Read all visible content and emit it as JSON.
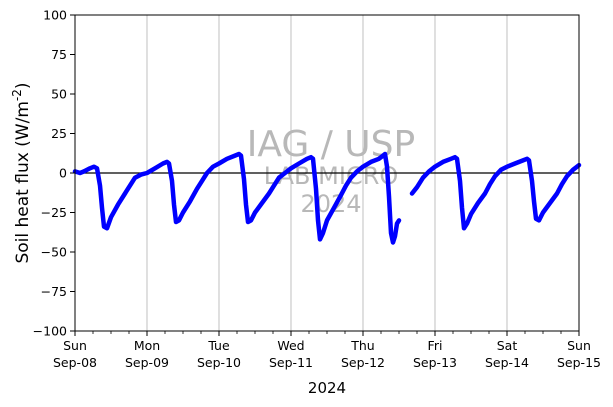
{
  "chart_data": {
    "type": "line",
    "xlabel": "2024",
    "ylabel": "Soil heat flux (W/m^-2)",
    "ylim": [
      -100,
      100
    ],
    "yticks": [
      100,
      75,
      50,
      25,
      0,
      -25,
      -50,
      -75,
      -100
    ],
    "ytick_labels": [
      "100",
      "75",
      "50",
      "25",
      "0",
      "−25",
      "−50",
      "−75",
      "−100"
    ],
    "xlim": [
      "2024-09-08T00:00",
      "2024-09-15T00:00"
    ],
    "xticks": [
      {
        "date": "2024-09-08",
        "day": "Sun",
        "label": "Sep-08"
      },
      {
        "date": "2024-09-09",
        "day": "Mon",
        "label": "Sep-09"
      },
      {
        "date": "2024-09-10",
        "day": "Tue",
        "label": "Sep-10"
      },
      {
        "date": "2024-09-11",
        "day": "Wed",
        "label": "Sep-11"
      },
      {
        "date": "2024-09-12",
        "day": "Thu",
        "label": "Sep-12"
      },
      {
        "date": "2024-09-13",
        "day": "Fri",
        "label": "Sep-13"
      },
      {
        "date": "2024-09-14",
        "day": "Sat",
        "label": "Sep-14"
      },
      {
        "date": "2024-09-15",
        "day": "Sun",
        "label": "Sep-15"
      }
    ],
    "grid": "vertical",
    "zero_line": true,
    "watermark": [
      "IAG / USP",
      "LAB MICRO",
      "2024"
    ],
    "series": [
      {
        "color": "#0000ff",
        "segments": [
          [
            [
              "2024-09-08T00:00",
              1
            ],
            [
              "2024-09-08T01:40",
              0
            ],
            [
              "2024-09-08T03:00",
              1
            ],
            [
              "2024-09-08T05:00",
              3
            ],
            [
              "2024-09-08T06:20",
              4
            ],
            [
              "2024-09-08T07:20",
              3
            ],
            [
              "2024-09-08T08:20",
              -8
            ],
            [
              "2024-09-08T09:00",
              -22
            ],
            [
              "2024-09-08T09:40",
              -34
            ],
            [
              "2024-09-08T10:40",
              -35
            ],
            [
              "2024-09-08T12:00",
              -28
            ],
            [
              "2024-09-08T14:20",
              -20
            ],
            [
              "2024-09-08T16:40",
              -13
            ],
            [
              "2024-09-08T18:20",
              -8
            ],
            [
              "2024-09-08T20:00",
              -3
            ],
            [
              "2024-09-08T22:00",
              -1
            ],
            [
              "2024-09-09T00:00",
              0
            ],
            [
              "2024-09-09T02:40",
              3
            ],
            [
              "2024-09-09T05:20",
              6
            ],
            [
              "2024-09-09T06:40",
              7
            ],
            [
              "2024-09-09T07:20",
              6
            ],
            [
              "2024-09-09T08:20",
              -5
            ],
            [
              "2024-09-09T09:00",
              -20
            ],
            [
              "2024-09-09T09:40",
              -31
            ],
            [
              "2024-09-09T10:40",
              -30
            ],
            [
              "2024-09-09T12:00",
              -25
            ],
            [
              "2024-09-09T14:20",
              -18
            ],
            [
              "2024-09-09T16:40",
              -10
            ],
            [
              "2024-09-09T18:20",
              -5
            ],
            [
              "2024-09-09T20:00",
              0
            ],
            [
              "2024-09-09T22:00",
              4
            ],
            [
              "2024-09-10T00:00",
              6
            ],
            [
              "2024-09-10T02:40",
              9
            ],
            [
              "2024-09-10T05:20",
              11
            ],
            [
              "2024-09-10T06:40",
              12
            ],
            [
              "2024-09-10T07:20",
              11
            ],
            [
              "2024-09-10T08:20",
              -4
            ],
            [
              "2024-09-10T09:00",
              -20
            ],
            [
              "2024-09-10T09:40",
              -31
            ],
            [
              "2024-09-10T10:40",
              -30
            ],
            [
              "2024-09-10T12:00",
              -25
            ],
            [
              "2024-09-10T14:20",
              -19
            ],
            [
              "2024-09-10T16:40",
              -13
            ],
            [
              "2024-09-10T18:20",
              -8
            ],
            [
              "2024-09-10T20:00",
              -3
            ],
            [
              "2024-09-10T22:00",
              0
            ],
            [
              "2024-09-11T00:00",
              3
            ],
            [
              "2024-09-11T02:40",
              6
            ],
            [
              "2024-09-11T05:20",
              9
            ],
            [
              "2024-09-11T06:40",
              10
            ],
            [
              "2024-09-11T07:20",
              9
            ],
            [
              "2024-09-11T08:20",
              -10
            ],
            [
              "2024-09-11T09:00",
              -30
            ],
            [
              "2024-09-11T09:40",
              -42
            ],
            [
              "2024-09-11T10:40",
              -38
            ],
            [
              "2024-09-11T12:00",
              -30
            ],
            [
              "2024-09-11T14:20",
              -22
            ],
            [
              "2024-09-11T16:40",
              -14
            ],
            [
              "2024-09-11T18:20",
              -8
            ],
            [
              "2024-09-11T20:00",
              -3
            ],
            [
              "2024-09-11T22:00",
              1
            ],
            [
              "2024-09-12T00:00",
              4
            ],
            [
              "2024-09-12T02:40",
              7
            ],
            [
              "2024-09-12T05:20",
              9
            ],
            [
              "2024-09-12T06:40",
              11
            ],
            [
              "2024-09-12T07:20",
              12
            ],
            [
              "2024-09-12T08:00",
              4
            ],
            [
              "2024-09-12T08:40",
              -15
            ],
            [
              "2024-09-12T09:20",
              -38
            ],
            [
              "2024-09-12T10:00",
              -44
            ],
            [
              "2024-09-12T10:40",
              -40
            ],
            [
              "2024-09-12T11:20",
              -32
            ],
            [
              "2024-09-12T12:00",
              -30
            ]
          ],
          [
            [
              "2024-09-12T16:20",
              -13
            ],
            [
              "2024-09-12T18:00",
              -9
            ],
            [
              "2024-09-12T20:00",
              -3
            ],
            [
              "2024-09-12T22:00",
              1
            ],
            [
              "2024-09-13T00:00",
              4
            ],
            [
              "2024-09-13T02:40",
              7
            ],
            [
              "2024-09-13T05:20",
              9
            ],
            [
              "2024-09-13T06:40",
              10
            ],
            [
              "2024-09-13T07:20",
              9
            ],
            [
              "2024-09-13T08:20",
              -5
            ],
            [
              "2024-09-13T09:00",
              -22
            ],
            [
              "2024-09-13T09:40",
              -35
            ],
            [
              "2024-09-13T10:40",
              -32
            ],
            [
              "2024-09-13T12:00",
              -26
            ],
            [
              "2024-09-13T14:20",
              -19
            ],
            [
              "2024-09-13T16:40",
              -13
            ],
            [
              "2024-09-13T18:20",
              -7
            ],
            [
              "2024-09-13T20:00",
              -2
            ],
            [
              "2024-09-13T22:00",
              2
            ],
            [
              "2024-09-14T00:00",
              4
            ],
            [
              "2024-09-14T02:40",
              6
            ],
            [
              "2024-09-14T05:20",
              8
            ],
            [
              "2024-09-14T06:40",
              9
            ],
            [
              "2024-09-14T07:20",
              8
            ],
            [
              "2024-09-14T08:20",
              -5
            ],
            [
              "2024-09-14T09:00",
              -18
            ],
            [
              "2024-09-14T09:40",
              -29
            ],
            [
              "2024-09-14T10:40",
              -30
            ],
            [
              "2024-09-14T12:00",
              -25
            ],
            [
              "2024-09-14T14:20",
              -19
            ],
            [
              "2024-09-14T16:40",
              -13
            ],
            [
              "2024-09-14T18:20",
              -7
            ],
            [
              "2024-09-14T20:00",
              -2
            ],
            [
              "2024-09-14T22:00",
              2
            ],
            [
              "2024-09-15T00:00",
              5
            ]
          ]
        ]
      }
    ]
  }
}
